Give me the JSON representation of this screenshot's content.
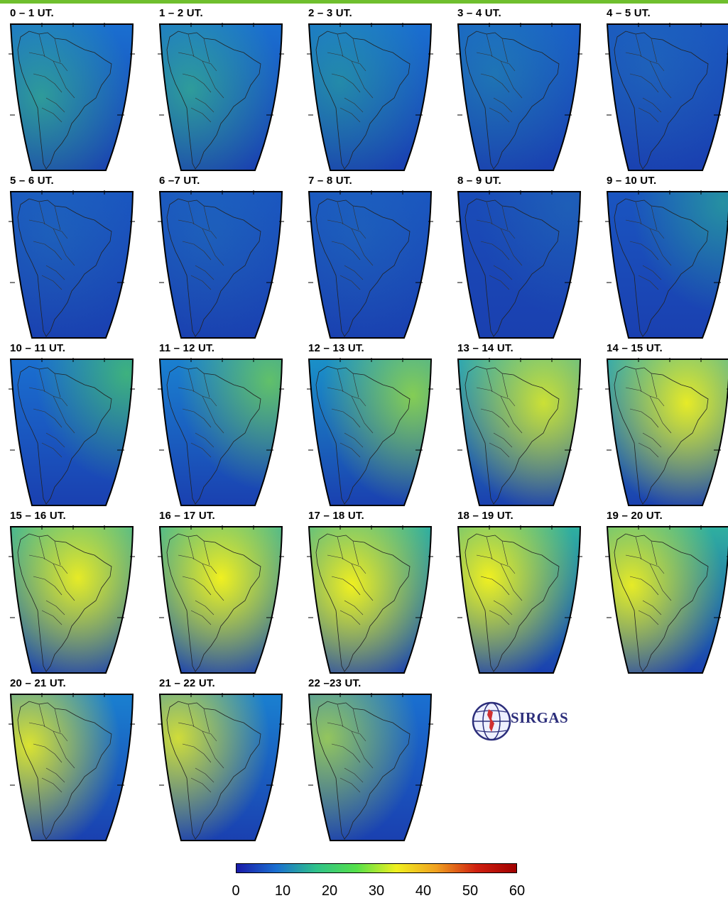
{
  "panels": [
    {
      "label": "0 – 1 UT."
    },
    {
      "label": "1 – 2 UT."
    },
    {
      "label": "2 – 3 UT."
    },
    {
      "label": "3 – 4 UT."
    },
    {
      "label": "4 – 5 UT."
    },
    {
      "label": "5 – 6 UT."
    },
    {
      "label": "6 –7 UT."
    },
    {
      "label": "7 – 8 UT."
    },
    {
      "label": "8 – 9 UT."
    },
    {
      "label": "9 – 10 UT."
    },
    {
      "label": "10 – 11 UT."
    },
    {
      "label": "11 – 12 UT."
    },
    {
      "label": "12 – 13 UT."
    },
    {
      "label": "13 – 14 UT."
    },
    {
      "label": "14 – 15 UT."
    },
    {
      "label": "15 – 16 UT."
    },
    {
      "label": "16 – 17 UT."
    },
    {
      "label": "17 – 18 UT."
    },
    {
      "label": "18 – 19 UT."
    },
    {
      "label": "19 – 20 UT."
    },
    {
      "label": "20 – 21 UT."
    },
    {
      "label": "21 – 22 UT."
    },
    {
      "label": "22 –23 UT."
    }
  ],
  "logo": {
    "text": "SIRGAS"
  },
  "colorbar": {
    "ticks": [
      "0",
      "10",
      "20",
      "30",
      "40",
      "50",
      "60"
    ],
    "min": 0,
    "max": 60,
    "colors": [
      "#1a1aa8",
      "#1a6fd0",
      "#2fc28a",
      "#55e04a",
      "#f0f020",
      "#f0a020",
      "#d02010",
      "#a00000"
    ]
  },
  "colors": {
    "accent": "#6fbf2e",
    "logo_text": "#2b2d7a"
  }
}
